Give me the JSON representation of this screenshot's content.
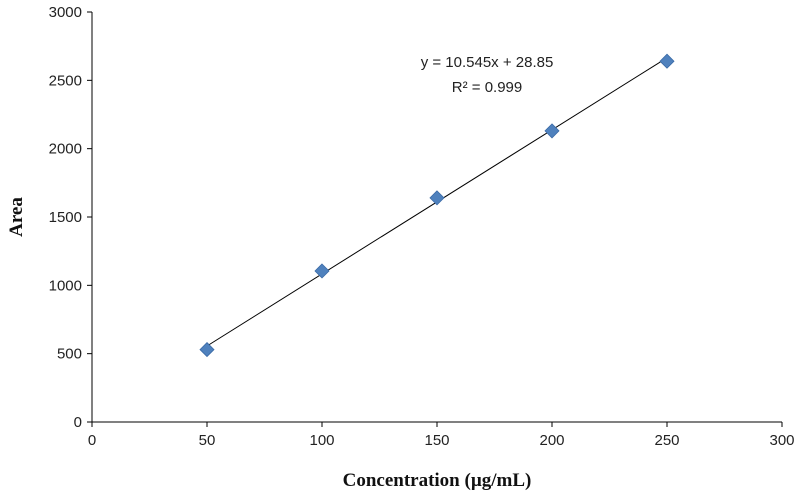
{
  "chart_data": {
    "type": "scatter",
    "title": "",
    "xlabel": "Concentration (µg/mL)",
    "ylabel": "Area",
    "xlim": [
      0,
      300
    ],
    "ylim": [
      0,
      3000
    ],
    "x_ticks": [
      "0",
      "50",
      "100",
      "150",
      "200",
      "250",
      "300"
    ],
    "y_ticks": [
      "0",
      "500",
      "1000",
      "1500",
      "2000",
      "2500",
      "3000"
    ],
    "grid": false,
    "series": [
      {
        "points": [
          {
            "x": 50,
            "y": 530
          },
          {
            "x": 100,
            "y": 1105
          },
          {
            "x": 150,
            "y": 1640
          },
          {
            "x": 200,
            "y": 2130
          },
          {
            "x": 250,
            "y": 2640
          }
        ],
        "marker_color": "#4f81bd"
      }
    ],
    "trendline": {
      "slope": 10.545,
      "intercept": 28.85,
      "x_range": [
        50,
        250
      ],
      "color": "#000000"
    },
    "annotations": {
      "equation": "y = 10.545x + 28.85",
      "r_squared": "R² = 0.999"
    }
  }
}
